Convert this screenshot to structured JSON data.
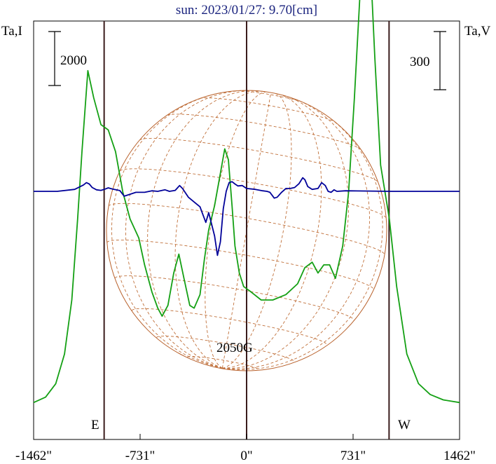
{
  "chart_data": {
    "type": "line",
    "title": "sun: 2023/01/27: 9.70[cm]",
    "left_axis_label": "Ta,I",
    "right_axis_label": "Ta,V",
    "left_scale_bar_label": "2000",
    "right_scale_bar_label": "300",
    "field_annotation": "2050G",
    "east_label": "E",
    "west_label": "W",
    "xlim": [
      -1462,
      1462
    ],
    "x_ticks": [
      {
        "value": -1462,
        "label": "-1462\""
      },
      {
        "value": -731,
        "label": "-731\""
      },
      {
        "value": 0,
        "label": "0\""
      },
      {
        "value": 731,
        "label": "731\""
      },
      {
        "value": 1462,
        "label": "1462\""
      }
    ],
    "solar_limb_positions": [
      -978,
      0,
      978
    ],
    "grid": false,
    "series": [
      {
        "key": "I",
        "color": "#14a014",
        "points": [
          [
            -1462,
            200
          ],
          [
            -1380,
            400
          ],
          [
            -1310,
            900
          ],
          [
            -1250,
            2000
          ],
          [
            -1200,
            4000
          ],
          [
            -1160,
            7000
          ],
          [
            -1130,
            9500
          ],
          [
            -1110,
            11000
          ],
          [
            -1090,
            12500
          ],
          [
            -1050,
            11500
          ],
          [
            -1000,
            10500
          ],
          [
            -950,
            10300
          ],
          [
            -900,
            9500
          ],
          [
            -850,
            8000
          ],
          [
            -800,
            7000
          ],
          [
            -740,
            6300
          ],
          [
            -700,
            5300
          ],
          [
            -650,
            4300
          ],
          [
            -610,
            3700
          ],
          [
            -580,
            3400
          ],
          [
            -540,
            3800
          ],
          [
            -500,
            5000
          ],
          [
            -465,
            5700
          ],
          [
            -430,
            4800
          ],
          [
            -390,
            3800
          ],
          [
            -360,
            3700
          ],
          [
            -320,
            4200
          ],
          [
            -290,
            5500
          ],
          [
            -260,
            6600
          ],
          [
            -220,
            7500
          ],
          [
            -180,
            8700
          ],
          [
            -150,
            9600
          ],
          [
            -125,
            9200
          ],
          [
            -100,
            7500
          ],
          [
            -80,
            6000
          ],
          [
            -50,
            5000
          ],
          [
            -20,
            4500
          ],
          [
            30,
            4300
          ],
          [
            100,
            4000
          ],
          [
            180,
            4000
          ],
          [
            270,
            4200
          ],
          [
            350,
            4600
          ],
          [
            400,
            5200
          ],
          [
            450,
            5400
          ],
          [
            490,
            5000
          ],
          [
            530,
            5300
          ],
          [
            570,
            5300
          ],
          [
            610,
            4800
          ],
          [
            660,
            6000
          ],
          [
            700,
            8000
          ],
          [
            740,
            11500
          ],
          [
            780,
            15500
          ],
          [
            815,
            17000
          ],
          [
            850,
            16500
          ],
          [
            880,
            13000
          ],
          [
            920,
            9000
          ],
          [
            980,
            7000
          ],
          [
            1030,
            4500
          ],
          [
            1100,
            2000
          ],
          [
            1180,
            900
          ],
          [
            1260,
            500
          ],
          [
            1350,
            300
          ],
          [
            1462,
            200
          ]
        ]
      },
      {
        "key": "V",
        "color": "#000099",
        "points": [
          [
            -1462,
            0
          ],
          [
            -1300,
            0
          ],
          [
            -1180,
            10
          ],
          [
            -1120,
            33
          ],
          [
            -1100,
            45
          ],
          [
            -1080,
            38
          ],
          [
            -1060,
            20
          ],
          [
            -1030,
            8
          ],
          [
            -1000,
            5
          ],
          [
            -970,
            12
          ],
          [
            -950,
            18
          ],
          [
            -920,
            12
          ],
          [
            -870,
            4
          ],
          [
            -840,
            -25
          ],
          [
            -800,
            -15
          ],
          [
            -760,
            -5
          ],
          [
            -700,
            -5
          ],
          [
            -650,
            3
          ],
          [
            -610,
            0
          ],
          [
            -560,
            8
          ],
          [
            -530,
            0
          ],
          [
            -490,
            5
          ],
          [
            -460,
            30
          ],
          [
            -440,
            15
          ],
          [
            -400,
            -30
          ],
          [
            -360,
            -55
          ],
          [
            -320,
            -80
          ],
          [
            -300,
            -120
          ],
          [
            -280,
            -160
          ],
          [
            -260,
            -110
          ],
          [
            -220,
            -230
          ],
          [
            -200,
            -330
          ],
          [
            -180,
            -260
          ],
          [
            -160,
            -90
          ],
          [
            -140,
            0
          ],
          [
            -120,
            45
          ],
          [
            -100,
            50
          ],
          [
            -80,
            38
          ],
          [
            -60,
            28
          ],
          [
            -30,
            30
          ],
          [
            0,
            15
          ],
          [
            60,
            10
          ],
          [
            110,
            3
          ],
          [
            140,
            0
          ],
          [
            160,
            -5
          ],
          [
            190,
            -35
          ],
          [
            210,
            -30
          ],
          [
            240,
            -5
          ],
          [
            270,
            15
          ],
          [
            300,
            15
          ],
          [
            330,
            20
          ],
          [
            360,
            40
          ],
          [
            385,
            70
          ],
          [
            400,
            60
          ],
          [
            420,
            25
          ],
          [
            450,
            10
          ],
          [
            490,
            15
          ],
          [
            515,
            45
          ],
          [
            540,
            30
          ],
          [
            560,
            0
          ],
          [
            580,
            -5
          ],
          [
            600,
            8
          ],
          [
            620,
            0
          ],
          [
            680,
            3
          ],
          [
            1000,
            0
          ],
          [
            1462,
            0
          ]
        ]
      }
    ]
  }
}
